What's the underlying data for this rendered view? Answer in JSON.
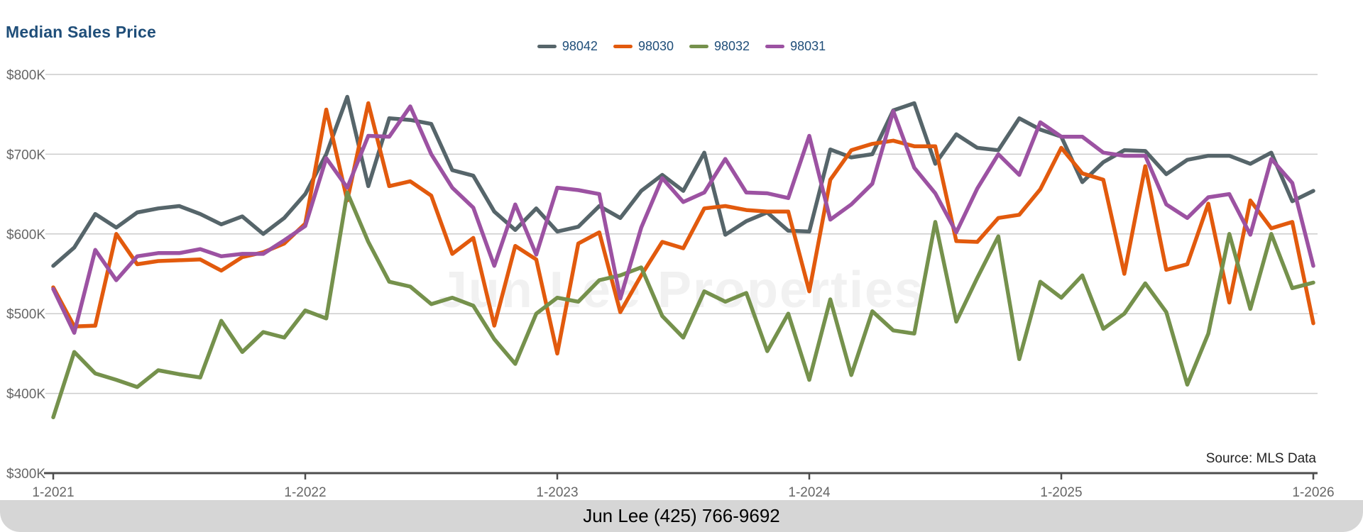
{
  "page": {
    "title": "Median Sales Price",
    "source_note": "Source: MLS Data",
    "watermark": "Jun Lee Properties",
    "footer": "Jun Lee (425) 766-9692"
  },
  "colors": {
    "title_text": "#1f4e79",
    "legend_text": "#1f4e79",
    "axis_line": "#4d4d4d",
    "tick_text": "#666666",
    "gridline": "#cccccc",
    "watermark": "#f1f1f1",
    "footer_bg": "#d6d6d6",
    "footer_text": "#000000"
  },
  "chart_data": {
    "type": "line",
    "title": "Median Sales Price",
    "value_unit": "USD thousands",
    "x_unit": "month",
    "points_per_series": 61,
    "x_start_label": "1-2021",
    "x_end_label": "1-2026",
    "x_tick_labels": [
      "1-2021",
      "1-2022",
      "1-2023",
      "1-2024",
      "1-2025",
      "1-2026"
    ],
    "x_tick_indices": [
      0,
      12,
      24,
      36,
      48,
      60
    ],
    "ylim": [
      300,
      800
    ],
    "y_ticks": [
      {
        "value": 300,
        "label": "$300K"
      },
      {
        "value": 400,
        "label": "$400K"
      },
      {
        "value": 500,
        "label": "$500K"
      },
      {
        "value": 600,
        "label": "$600K"
      },
      {
        "value": 700,
        "label": "$700K"
      },
      {
        "value": 800,
        "label": "$800K"
      }
    ],
    "grid": "horizontal",
    "legend_position": "top-center",
    "series": [
      {
        "name": "98042",
        "color": "#56656a",
        "values": [
          560,
          583,
          625,
          608,
          627,
          632,
          635,
          625,
          612,
          622,
          600,
          620,
          650,
          700,
          772,
          660,
          745,
          743,
          738,
          680,
          673,
          628,
          605,
          632,
          603,
          609,
          635,
          620,
          654,
          674,
          654,
          702,
          599,
          616,
          627,
          604,
          603,
          706,
          696,
          700,
          755,
          764,
          688,
          725,
          708,
          705,
          745,
          731,
          722,
          665,
          690,
          705,
          704,
          675,
          693,
          698,
          698,
          688,
          702,
          641,
          654
        ]
      },
      {
        "name": "98030",
        "color": "#e25a0d",
        "values": [
          533,
          484,
          485,
          600,
          562,
          566,
          567,
          568,
          554,
          571,
          577,
          588,
          613,
          756,
          642,
          764,
          660,
          666,
          648,
          575,
          595,
          485,
          585,
          568,
          450,
          588,
          602,
          502,
          548,
          590,
          582,
          632,
          635,
          630,
          628,
          628,
          528,
          668,
          705,
          713,
          717,
          710,
          710,
          591,
          590,
          620,
          624,
          656,
          708,
          676,
          668,
          550,
          685,
          555,
          562,
          638,
          514,
          642,
          607,
          615,
          488
        ]
      },
      {
        "name": "98032",
        "color": "#75914c",
        "values": [
          370,
          452,
          425,
          417,
          408,
          429,
          424,
          420,
          491,
          452,
          477,
          470,
          504,
          494,
          652,
          590,
          540,
          534,
          512,
          520,
          510,
          468,
          437,
          500,
          520,
          515,
          542,
          548,
          558,
          497,
          470,
          528,
          515,
          526,
          453,
          500,
          417,
          518,
          423,
          503,
          479,
          475,
          615,
          490,
          545,
          597,
          443,
          540,
          520,
          548,
          481,
          500,
          538,
          502,
          411,
          475,
          600,
          506,
          600,
          532,
          539
        ]
      },
      {
        "name": "98031",
        "color": "#9c52a2",
        "values": [
          531,
          476,
          580,
          542,
          572,
          576,
          576,
          581,
          572,
          575,
          575,
          592,
          610,
          695,
          658,
          723,
          722,
          760,
          700,
          658,
          633,
          560,
          637,
          574,
          658,
          655,
          650,
          519,
          608,
          670,
          640,
          652,
          694,
          652,
          651,
          645,
          723,
          618,
          637,
          663,
          754,
          683,
          651,
          602,
          657,
          700,
          674,
          740,
          722,
          722,
          702,
          698,
          698,
          637,
          620,
          646,
          650,
          599,
          694,
          664,
          560
        ]
      }
    ]
  }
}
